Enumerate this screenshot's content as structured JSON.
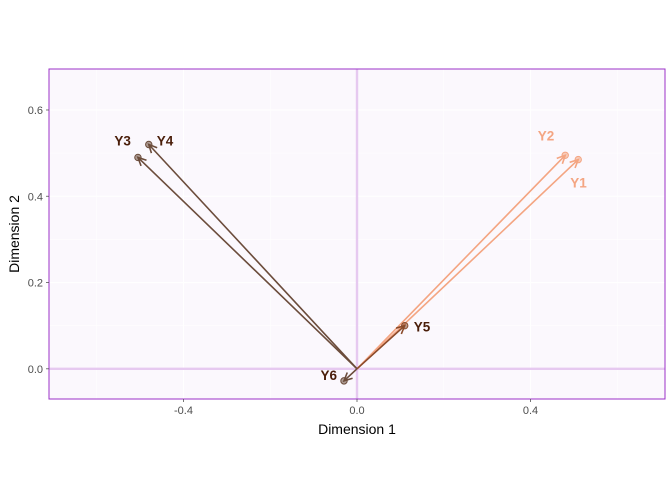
{
  "chart_data": {
    "type": "scatter",
    "title": "",
    "xlabel": "Dimension 1",
    "ylabel": "Dimension 2",
    "xlim": [
      -0.71,
      0.71
    ],
    "ylim": [
      -0.07,
      0.695
    ],
    "x_ticks": [
      -0.4,
      0.0,
      0.4
    ],
    "x_tick_labels": [
      "-0.4",
      "0.0",
      "0.4"
    ],
    "y_ticks": [
      0.0,
      0.2,
      0.4,
      0.6
    ],
    "y_tick_labels": [
      "0.0",
      "0.2",
      "0.4",
      "0.6"
    ],
    "grid": true,
    "legend": "none",
    "reference_lines": {
      "x": 0,
      "y": 0
    },
    "points": [
      {
        "label": "Y1",
        "x": 0.51,
        "y": 0.485,
        "color": "#f4a582"
      },
      {
        "label": "Y2",
        "x": 0.48,
        "y": 0.495,
        "color": "#f4a582"
      },
      {
        "label": "Y3",
        "x": -0.505,
        "y": 0.49,
        "color": "#6b4c3b"
      },
      {
        "label": "Y4",
        "x": -0.48,
        "y": 0.52,
        "color": "#6b4c3b"
      },
      {
        "label": "Y5",
        "x": 0.11,
        "y": 0.1,
        "color": "#8a4a2a"
      },
      {
        "label": "Y6",
        "x": -0.03,
        "y": -0.028,
        "color": "#6b4c3b"
      }
    ]
  },
  "colors": {
    "panel_border": "#9b30c8",
    "panel_background": "#fbf8fd",
    "reference_line": "#e6c9f0",
    "grid": "#ffffff",
    "label_light": "#f4a582",
    "label_dark": "#4a1e0a"
  }
}
